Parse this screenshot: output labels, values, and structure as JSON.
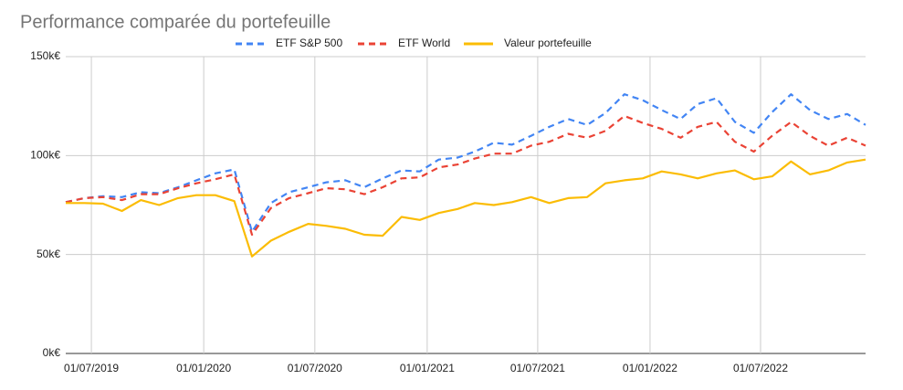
{
  "chart_data": {
    "type": "line",
    "title": "Performance comparée du portefeuille",
    "x": [
      "2019-05-20",
      "2019-06-20",
      "2019-07-20",
      "2019-08-20",
      "2019-09-20",
      "2019-10-20",
      "2019-11-20",
      "2019-12-20",
      "2020-01-20",
      "2020-02-20",
      "2020-03-20",
      "2020-04-20",
      "2020-05-20",
      "2020-06-20",
      "2020-07-20",
      "2020-08-20",
      "2020-09-20",
      "2020-10-20",
      "2020-11-20",
      "2020-12-20",
      "2021-01-20",
      "2021-02-20",
      "2021-03-20",
      "2021-04-20",
      "2021-05-20",
      "2021-06-20",
      "2021-07-20",
      "2021-08-20",
      "2021-09-20",
      "2021-10-20",
      "2021-11-20",
      "2021-12-20",
      "2022-01-20",
      "2022-02-20",
      "2022-03-20",
      "2022-04-20",
      "2022-05-20",
      "2022-06-20",
      "2022-07-20",
      "2022-08-20",
      "2022-09-20",
      "2022-10-20",
      "2022-11-20",
      "2022-12-20"
    ],
    "series": [
      {
        "name": "ETF S&P 500",
        "color": "#4285f4",
        "dashed": true,
        "values": [
          76500,
          78500,
          79500,
          79000,
          81500,
          81000,
          84000,
          87500,
          91000,
          93000,
          61500,
          76000,
          81500,
          84000,
          86500,
          87500,
          84000,
          88500,
          92500,
          92000,
          98000,
          99000,
          102000,
          106500,
          105500,
          110000,
          114500,
          118500,
          115500,
          121500,
          131000,
          128000,
          123000,
          118500,
          126000,
          129000,
          117000,
          111500,
          122000,
          131000,
          123000,
          118500,
          121000,
          115500
        ]
      },
      {
        "name": "ETF World",
        "color": "#ea4335",
        "dashed": true,
        "values": [
          76500,
          78500,
          79000,
          77500,
          80500,
          80500,
          83500,
          86000,
          88000,
          90500,
          60000,
          73500,
          78500,
          81000,
          83500,
          83000,
          80500,
          84000,
          88500,
          89000,
          94000,
          95500,
          98500,
          101000,
          101000,
          105000,
          107000,
          111000,
          109000,
          112500,
          120000,
          116500,
          113500,
          109000,
          114500,
          117000,
          107000,
          102000,
          110000,
          117000,
          110000,
          105000,
          109000,
          105000
        ]
      },
      {
        "name": "Valeur portefeuille",
        "color": "#fbbc04",
        "dashed": false,
        "values": [
          76000,
          76000,
          75700,
          72000,
          77500,
          75000,
          78500,
          80000,
          80000,
          77000,
          49000,
          57000,
          61500,
          65500,
          64500,
          63000,
          60000,
          59500,
          69000,
          67500,
          71000,
          73000,
          76000,
          75000,
          76500,
          79000,
          76000,
          78500,
          79000,
          86000,
          87500,
          88500,
          92000,
          90500,
          88500,
          91000,
          92500,
          88000,
          89500,
          97000,
          90500,
          92500,
          96500,
          98000
        ]
      }
    ],
    "xlim": [
      "2019-05-20",
      "2022-12-20"
    ],
    "xticks": [
      {
        "value": "2019-07-01",
        "label": "01/07/2019"
      },
      {
        "value": "2020-01-01",
        "label": "01/01/2020"
      },
      {
        "value": "2020-07-01",
        "label": "01/07/2020"
      },
      {
        "value": "2021-01-01",
        "label": "01/01/2021"
      },
      {
        "value": "2021-07-01",
        "label": "01/07/2021"
      },
      {
        "value": "2022-01-01",
        "label": "01/01/2022"
      },
      {
        "value": "2022-07-01",
        "label": "01/07/2022"
      }
    ],
    "ylim": [
      0,
      150000
    ],
    "yticks": [
      {
        "value": 0,
        "label": "0k€"
      },
      {
        "value": 50000,
        "label": "50k€"
      },
      {
        "value": 100000,
        "label": "100k€"
      },
      {
        "value": 150000,
        "label": "150k€"
      }
    ],
    "grid": true,
    "legend": "top"
  }
}
